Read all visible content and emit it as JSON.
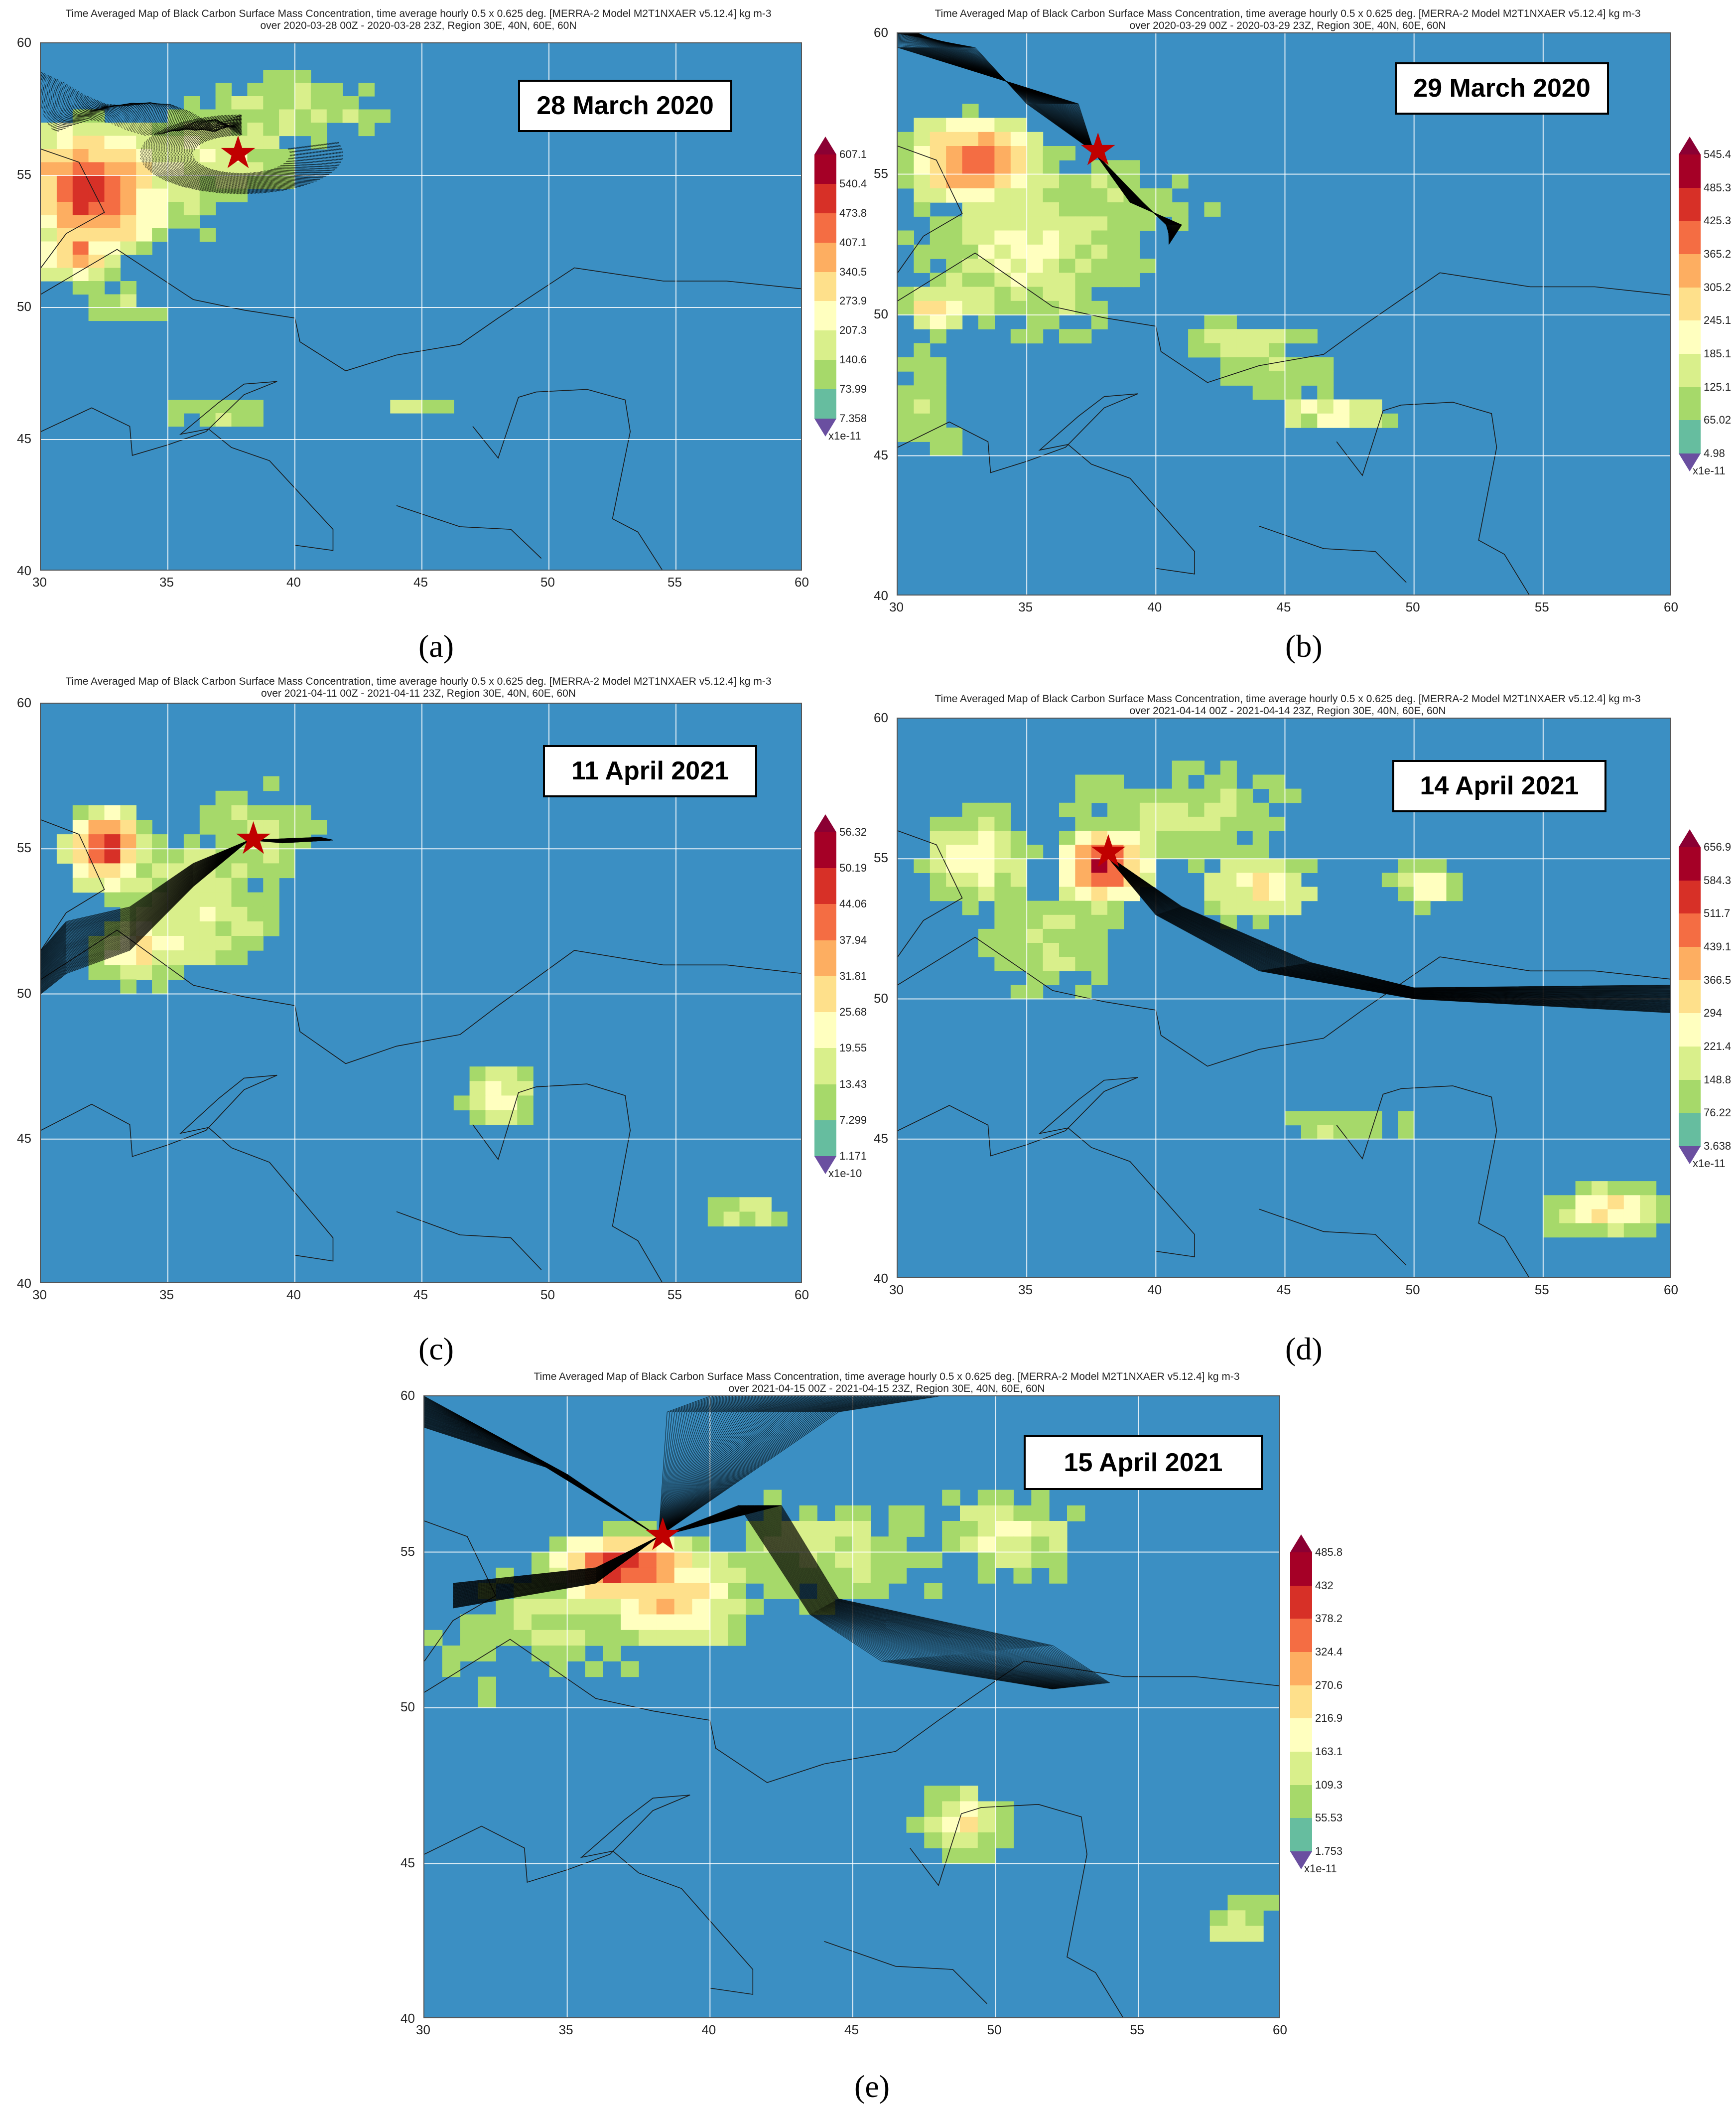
{
  "panels": [
    {
      "id": "a",
      "title1": "Time Averaged Map of Black Carbon Surface Mass Concentration, time average hourly 0.5 x 0.625 deg. [MERRA-2 Model M2T1NXAER v5.12.4] kg m-3",
      "title2": "over 2020-03-28 00Z - 2020-03-28 23Z, Region 30E, 40N, 60E, 60N",
      "date": "28 March 2020",
      "caption": "(a)",
      "colorbar": [
        "607.1",
        "540.4",
        "473.8",
        "407.1",
        "340.5",
        "273.9",
        "207.3",
        "140.6",
        "73.99",
        "7.358"
      ],
      "unit": "x1e-11",
      "x_ticks": [
        "30",
        "35",
        "40",
        "45",
        "50",
        "55",
        "60"
      ],
      "y_ticks": [
        "60",
        "55",
        "50",
        "45",
        "40"
      ],
      "source_star": {
        "lon": 37.6,
        "lat": 55.8
      }
    },
    {
      "id": "b",
      "title1": "Time Averaged Map of Black Carbon Surface Mass Concentration, time average hourly 0.5 x 0.625 deg. [MERRA-2 Model M2T1NXAER v5.12.4] kg m-3",
      "title2": "over 2020-03-29 00Z - 2020-03-29 23Z, Region 30E, 40N, 60E, 60N",
      "date": "29 March 2020",
      "caption": "(b)",
      "colorbar": [
        "545.4",
        "485.3",
        "425.3",
        "365.2",
        "305.2",
        "245.1",
        "185.1",
        "125.1",
        "65.02",
        "4.98"
      ],
      "unit": "x1e-11",
      "x_ticks": [
        "30",
        "35",
        "40",
        "45",
        "50",
        "55",
        "60"
      ],
      "y_ticks": [
        "60",
        "55",
        "50",
        "45",
        "40"
      ],
      "source_star": {
        "lon": 37.6,
        "lat": 55.8
      }
    },
    {
      "id": "c",
      "title1": "Time Averaged Map of Black Carbon Surface Mass Concentration, time average hourly 0.5 x 0.625 deg. [MERRA-2 Model M2T1NXAER v5.12.4] kg m-3",
      "title2": "over 2021-04-11 00Z - 2021-04-11 23Z, Region 30E, 40N, 60E, 60N",
      "date": "11 April 2021",
      "caption": "(c)",
      "colorbar": [
        "56.32",
        "50.19",
        "44.06",
        "37.94",
        "31.81",
        "25.68",
        "19.55",
        "13.43",
        "7.299",
        "1.171"
      ],
      "unit": "x1e-10",
      "x_ticks": [
        "30",
        "35",
        "40",
        "45",
        "50",
        "55",
        "60"
      ],
      "y_ticks": [
        "60",
        "55",
        "50",
        "45",
        "40"
      ],
      "source_star": {
        "lon": 38.2,
        "lat": 55.3
      }
    },
    {
      "id": "d",
      "title1": "Time Averaged Map of Black Carbon Surface Mass Concentration, time average hourly 0.5 x 0.625 deg. [MERRA-2 Model M2T1NXAER v5.12.4] kg m-3",
      "title2": "over 2021-04-14 00Z - 2021-04-14 23Z, Region 30E, 40N, 60E, 60N",
      "date": "14 April 2021",
      "caption": "(d)",
      "colorbar": [
        "656.9",
        "584.3",
        "511.7",
        "439.1",
        "366.5",
        "294",
        "221.4",
        "148.8",
        "76.22",
        "3.638"
      ],
      "unit": "x1e-11",
      "x_ticks": [
        "30",
        "35",
        "40",
        "45",
        "50",
        "55",
        "60"
      ],
      "y_ticks": [
        "60",
        "55",
        "50",
        "45",
        "40"
      ],
      "source_star": {
        "lon": 38.0,
        "lat": 55.2
      }
    },
    {
      "id": "e",
      "title1": "Time Averaged Map of Black Carbon Surface Mass Concentration, time average hourly 0.5 x 0.625 deg. [MERRA-2 Model M2T1NXAER v5.12.4] kg m-3",
      "title2": "over 2021-04-15 00Z - 2021-04-15 23Z, Region 30E, 40N, 60E, 60N",
      "date": "15 April 2021",
      "caption": "(e)",
      "colorbar": [
        "485.8",
        "432",
        "378.2",
        "324.4",
        "270.6",
        "216.9",
        "163.1",
        "109.3",
        "55.53",
        "1.753"
      ],
      "unit": "x1e-11",
      "x_ticks": [
        "30",
        "35",
        "40",
        "45",
        "50",
        "55",
        "60"
      ],
      "y_ticks": [
        "60",
        "55",
        "50",
        "45",
        "40"
      ],
      "source_star": {
        "lon": 38.2,
        "lat": 55.5
      }
    }
  ],
  "colors": {
    "sea_blue": "#3b8fc3",
    "scale": [
      "#a50026",
      "#d73027",
      "#f46d43",
      "#fdae61",
      "#fee08b",
      "#ffffbf",
      "#d9ef8b",
      "#a6d96a",
      "#66bd9f",
      "#3b8fc3"
    ],
    "over": "#8b0033",
    "under": "#6a4fa0",
    "star": "#c00000"
  },
  "icons": {
    "source": "star-icon"
  }
}
